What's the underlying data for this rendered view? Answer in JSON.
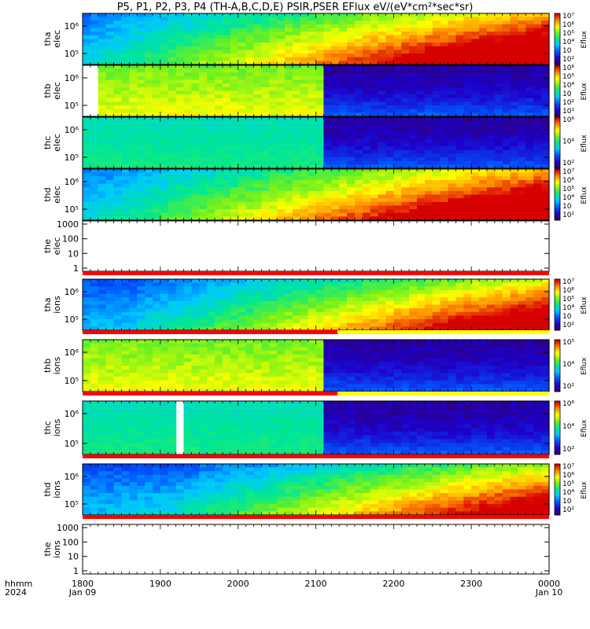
{
  "title": "P5, P1, P2, P3, P4 (TH-A,B,C,D,E) PSIR,PSER EFlux eV/(eV*cm²*sec*sr)",
  "xaxis": {
    "label_line1": "hhmm",
    "label_line2": "2024",
    "ticks": [
      {
        "value": 1800,
        "label": "1800",
        "sub": "Jan 09"
      },
      {
        "value": 1900,
        "label": "1900",
        "sub": ""
      },
      {
        "value": 2000,
        "label": "2000",
        "sub": ""
      },
      {
        "value": 2100,
        "label": "2100",
        "sub": ""
      },
      {
        "value": 2200,
        "label": "2200",
        "sub": ""
      },
      {
        "value": 2300,
        "label": "2300",
        "sub": ""
      },
      {
        "value": 2400,
        "label": "0000",
        "sub": "Jan 10"
      }
    ]
  },
  "colorbar_label": "Eflux",
  "colors": {
    "flag_red": "#ff0000",
    "flag_yellow": "#ffff00",
    "fill_white": "#ffffff"
  },
  "chart_data": [
    {
      "type": "heatmap",
      "probe": "tha",
      "species": "elec",
      "ylabel_line1": "tha",
      "ylabel_line2": "elec",
      "yscale": "log",
      "yticks": [
        "10⁶",
        "10⁵"
      ],
      "cbar_ticks": [
        "10⁷",
        "10⁶",
        "10⁵",
        "10⁴",
        "10⁳",
        "10²"
      ],
      "cbar_range": [
        2,
        7
      ],
      "profile": "rising"
    },
    {
      "type": "heatmap",
      "probe": "thb",
      "species": "elec",
      "ylabel_line1": "thb",
      "ylabel_line2": "elec",
      "yscale": "log",
      "yticks": [
        "10⁶",
        "10⁵"
      ],
      "cbar_ticks": [
        "10⁶",
        "10⁵",
        "10⁴",
        "10⁳",
        "10²",
        "10¹"
      ],
      "cbar_range": [
        1,
        6
      ],
      "profile": "cutoff"
    },
    {
      "type": "heatmap",
      "probe": "thc",
      "species": "elec",
      "ylabel_line1": "thc",
      "ylabel_line2": "elec",
      "yscale": "log",
      "yticks": [
        "10⁶",
        "10⁵"
      ],
      "cbar_ticks": [
        "10⁶",
        "10⁴",
        "10²"
      ],
      "cbar_range": [
        1,
        7
      ],
      "profile": "cutoff_flat"
    },
    {
      "type": "heatmap",
      "probe": "thd",
      "species": "elec",
      "ylabel_line1": "thd",
      "ylabel_line2": "elec",
      "yscale": "log",
      "yticks": [
        "10⁶",
        "10⁵"
      ],
      "cbar_ticks": [
        "10⁷",
        "10⁶",
        "10⁵",
        "10⁴",
        "10⁳",
        "10²"
      ],
      "cbar_range": [
        2,
        7
      ],
      "profile": "rising"
    },
    {
      "type": "line",
      "probe": "the",
      "species": "elec",
      "ylabel_line1": "the",
      "ylabel_line2": "elec",
      "yscale": "log",
      "yticks": [
        "1000",
        "100",
        "10",
        "1"
      ],
      "empty": true
    },
    {
      "type": "heatmap",
      "probe": "tha",
      "species": "ions",
      "ylabel_line1": "tha",
      "ylabel_line2": "ions",
      "yscale": "log",
      "yticks": [
        "10⁶",
        "10⁵"
      ],
      "cbar_ticks": [
        "10⁷",
        "10⁶",
        "10⁵",
        "10⁴",
        "10⁳",
        "10²"
      ],
      "cbar_range": [
        2,
        7
      ],
      "profile": "rising_ions"
    },
    {
      "type": "heatmap",
      "probe": "thb",
      "species": "ions",
      "ylabel_line1": "thb",
      "ylabel_line2": "ions",
      "yscale": "log",
      "yticks": [
        "10⁶",
        "10⁵"
      ],
      "cbar_ticks": [
        "10⁵",
        "10⁴",
        "10²"
      ],
      "cbar_range": [
        1,
        6
      ],
      "profile": "cutoff"
    },
    {
      "type": "heatmap",
      "probe": "thc",
      "species": "ions",
      "ylabel_line1": "thc",
      "ylabel_line2": "ions",
      "yscale": "log",
      "yticks": [
        "10⁶",
        "10⁵"
      ],
      "cbar_ticks": [
        "10⁶",
        "10⁴",
        "10²"
      ],
      "cbar_range": [
        1,
        7
      ],
      "profile": "cutoff_flat_gap"
    },
    {
      "type": "heatmap",
      "probe": "thd",
      "species": "ions",
      "ylabel_line1": "thd",
      "ylabel_line2": "ions",
      "yscale": "log",
      "yticks": [
        "10⁶",
        "10⁵"
      ],
      "cbar_ticks": [
        "10⁷",
        "10⁶",
        "10⁵",
        "10⁴",
        "10⁳",
        "10²"
      ],
      "cbar_range": [
        2,
        7
      ],
      "profile": "rising_ions_late"
    },
    {
      "type": "line",
      "probe": "the",
      "species": "ions",
      "ylabel_line1": "the",
      "ylabel_line2": "ions",
      "yscale": "log",
      "yticks": [
        "1000",
        "100",
        "10",
        "1"
      ],
      "empty": true
    }
  ]
}
